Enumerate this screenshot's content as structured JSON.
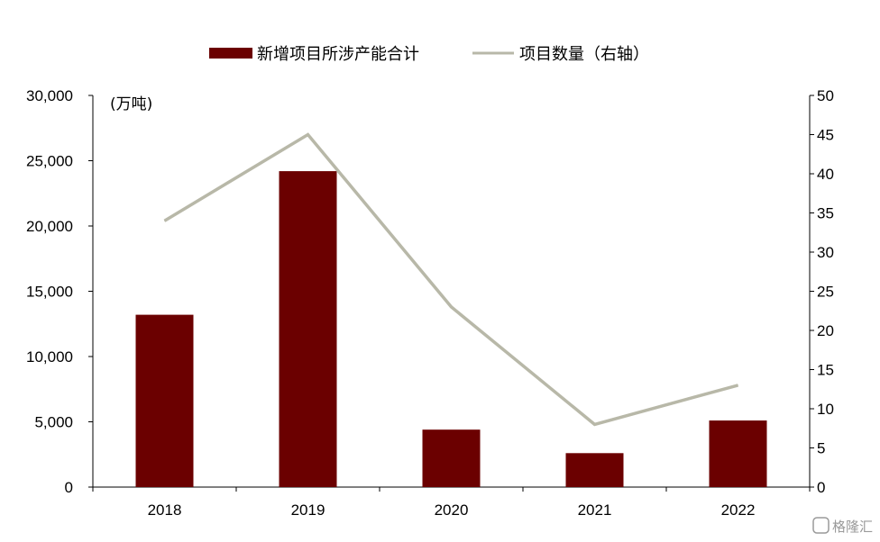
{
  "chart_data": {
    "type": "bar",
    "categories": [
      "2018",
      "2019",
      "2020",
      "2021",
      "2022"
    ],
    "series": [
      {
        "name": "新增项目所涉产能合计",
        "type": "bar",
        "axis": "left",
        "color": "#6b0000",
        "values": [
          13200,
          24200,
          4400,
          2600,
          5100
        ]
      },
      {
        "name": "项目数量（右轴）",
        "type": "line",
        "axis": "right",
        "color": "#b8b8a8",
        "values": [
          34,
          45,
          23,
          8,
          13
        ]
      }
    ],
    "ylabel": "(万吨)",
    "ylim": [
      0,
      30000
    ],
    "y_ticks": [
      "0",
      "5,000",
      "10,000",
      "15,000",
      "20,000",
      "25,000",
      "30,000"
    ],
    "y2lim": [
      0,
      50
    ],
    "y2_ticks": [
      "0",
      "5",
      "10",
      "15",
      "20",
      "25",
      "30",
      "35",
      "40",
      "45",
      "50"
    ],
    "legend_position": "top",
    "grid": false
  },
  "watermark": "格隆汇"
}
